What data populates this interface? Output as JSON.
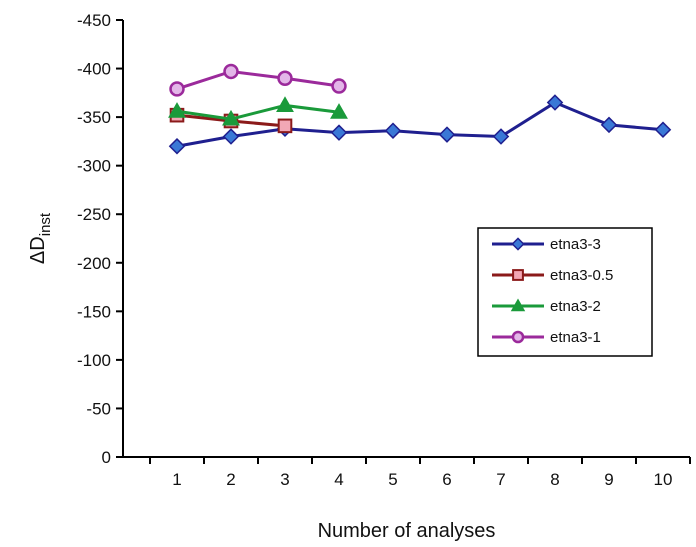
{
  "chart_data": {
    "type": "line",
    "title": "",
    "xlabel": "Number of analyses",
    "ylabel": "ΔDinst",
    "ylabel_main": "ΔD",
    "ylabel_sub": "inst",
    "x_ticks": [
      1,
      2,
      3,
      4,
      5,
      6,
      7,
      8,
      9,
      10
    ],
    "y_ticks": [
      0,
      -50,
      -100,
      -150,
      -200,
      -250,
      -300,
      -350,
      -400,
      -450
    ],
    "xlim": [
      0,
      10.5
    ],
    "ylim": [
      0,
      -450
    ],
    "y_reversed": true,
    "grid": false,
    "legend_position": "right",
    "series": [
      {
        "name": "etna3-3",
        "marker": "diamond",
        "color": "#1f1f8f",
        "marker_fill": "#3a78d6",
        "x": [
          1,
          2,
          3,
          4,
          5,
          6,
          7,
          8,
          9,
          10
        ],
        "y": [
          -320,
          -330,
          -338,
          -334,
          -336,
          -332,
          -330,
          -365,
          -342,
          -337
        ]
      },
      {
        "name": "etna3-0.5",
        "marker": "square",
        "color": "#8b1a1a",
        "marker_fill": "#f2a7b5",
        "x": [
          1,
          2,
          3
        ],
        "y": [
          -352,
          -346,
          -341
        ]
      },
      {
        "name": "etna3-2",
        "marker": "triangle",
        "color": "#1a9a3a",
        "marker_fill": "#1a9a3a",
        "x": [
          1,
          2,
          3,
          4
        ],
        "y": [
          -356,
          -348,
          -362,
          -355
        ]
      },
      {
        "name": "etna3-1",
        "marker": "circle",
        "color": "#9b2a9b",
        "marker_fill": "#e3b6e8",
        "x": [
          1,
          2,
          3,
          4
        ],
        "y": [
          -379,
          -397,
          -390,
          -382
        ]
      }
    ]
  }
}
